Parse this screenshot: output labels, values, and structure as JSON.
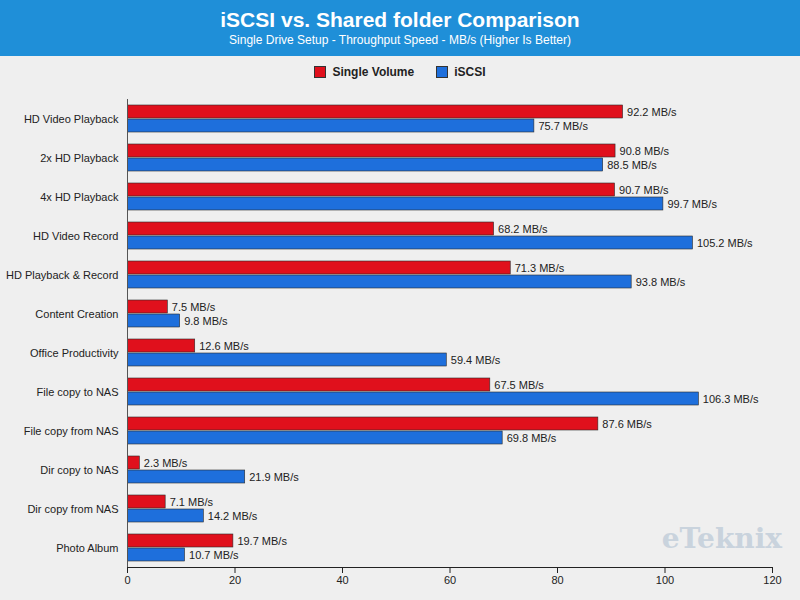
{
  "chart_data": {
    "type": "bar",
    "title": "iSCSI vs. Shared folder Comparison",
    "subtitle": "Single Drive Setup - Throughput Speed - MB/s (Higher Is Better)",
    "orientation": "horizontal",
    "categories": [
      "HD Video Playback",
      "2x HD Playback",
      "4x HD Playback",
      "HD Video Record",
      "HD Playback & Record",
      "Content Creation",
      "Office Productivity",
      "File copy to NAS",
      "File copy from NAS",
      "Dir copy to NAS",
      "Dir copy from NAS",
      "Photo Album"
    ],
    "series": [
      {
        "name": "Single Volume",
        "color": "#e0101c",
        "values": [
          92.2,
          90.8,
          90.7,
          68.2,
          71.3,
          7.5,
          12.6,
          67.5,
          87.6,
          2.3,
          7.1,
          19.7
        ],
        "value_labels": [
          "92.2 MB/s",
          "90.8 MB/s",
          "90.7 MB/s",
          "68.2 MB/s",
          "71.3 MB/s",
          "7.5 MB/s",
          "12.6 MB/s",
          "67.5 MB/s",
          "87.6 MB/s",
          "2.3 MB/s",
          "7.1 MB/s",
          "19.7 MB/s"
        ]
      },
      {
        "name": "iSCSI",
        "color": "#1e6fdc",
        "values": [
          75.7,
          88.5,
          99.7,
          105.2,
          93.8,
          9.8,
          59.4,
          106.3,
          69.8,
          21.9,
          14.2,
          10.7
        ],
        "value_labels": [
          "75.7 MB/s",
          "88.5 MB/s",
          "99.7 MB/s",
          "105.2 MB/s",
          "93.8 MB/s",
          "9.8 MB/s",
          "59.4 MB/s",
          "106.3 MB/s",
          "69.8 MB/s",
          "21.9 MB/s",
          "14.2 MB/s",
          "10.7 MB/s"
        ]
      }
    ],
    "xlim": [
      0,
      120
    ],
    "xticks": [
      0,
      20,
      40,
      60,
      80,
      100,
      120
    ],
    "grid": false,
    "data_labels": true,
    "legend": "top",
    "annotations": [
      "eTeknix"
    ]
  }
}
